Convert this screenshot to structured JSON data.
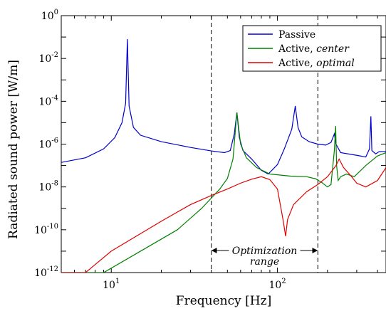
{
  "chart_data": {
    "type": "line",
    "xlabel": "Frequency [Hz]",
    "ylabel": "Radiated sound power [W/m]",
    "xscale": "log",
    "yscale": "log",
    "xlim": [
      5,
      450
    ],
    "ylim": [
      1e-12,
      1
    ],
    "grid": false,
    "legend_position": "top-right",
    "x_ticks": [
      {
        "base": "10",
        "exp": "1",
        "value": 10
      },
      {
        "base": "10",
        "exp": "2",
        "value": 100
      }
    ],
    "y_ticks": [
      {
        "base": "10",
        "exp": "0",
        "value": 1
      },
      {
        "base": "10",
        "exp": "-2",
        "value": 0.01
      },
      {
        "base": "10",
        "exp": "-4",
        "value": 0.0001
      },
      {
        "base": "10",
        "exp": "-6",
        "value": 1e-06
      },
      {
        "base": "10",
        "exp": "-8",
        "value": 1e-08
      },
      {
        "base": "10",
        "exp": "-10",
        "value": 1e-10
      },
      {
        "base": "10",
        "exp": "-12",
        "value": 1e-12
      }
    ],
    "series": [
      {
        "name": "Passive",
        "color": "#0000cc",
        "points": [
          [
            5,
            1.4e-07
          ],
          [
            7,
            2.3e-07
          ],
          [
            9,
            6e-07
          ],
          [
            10.5,
            2e-06
          ],
          [
            11.6,
            1e-05
          ],
          [
            12.2,
            8e-05
          ],
          [
            12.5,
            0.08
          ],
          [
            12.8,
            6e-05
          ],
          [
            13.6,
            6e-06
          ],
          [
            15,
            2.6e-06
          ],
          [
            20,
            1.3e-06
          ],
          [
            30,
            7e-07
          ],
          [
            40,
            4.8e-07
          ],
          [
            48,
            4e-07
          ],
          [
            52,
            5e-07
          ],
          [
            55,
            3e-06
          ],
          [
            57,
            3e-05
          ],
          [
            59,
            2e-06
          ],
          [
            62,
            5e-07
          ],
          [
            70,
            2e-07
          ],
          [
            80,
            6e-08
          ],
          [
            88,
            4e-08
          ],
          [
            100,
            1.1e-07
          ],
          [
            110,
            6e-07
          ],
          [
            122,
            5e-06
          ],
          [
            128,
            6e-05
          ],
          [
            133,
            6e-06
          ],
          [
            140,
            2.2e-06
          ],
          [
            155,
            1.3e-06
          ],
          [
            175,
            1e-06
          ],
          [
            195,
            9e-07
          ],
          [
            210,
            1.2e-06
          ],
          [
            220,
            3e-06
          ],
          [
            225,
            1e-06
          ],
          [
            240,
            4e-07
          ],
          [
            300,
            3e-07
          ],
          [
            340,
            2.5e-07
          ],
          [
            358,
            6e-07
          ],
          [
            365,
            2e-05
          ],
          [
            370,
            5e-07
          ],
          [
            390,
            3.5e-07
          ],
          [
            410,
            4.5e-07
          ],
          [
            450,
            4.5e-07
          ]
        ]
      },
      {
        "name": "Active, center",
        "name_plain": "Active, ",
        "name_italic": "center",
        "color": "#008000",
        "points": [
          [
            5,
            1e-12
          ],
          [
            9,
            1e-12
          ],
          [
            15,
            1e-11
          ],
          [
            25,
            1e-10
          ],
          [
            35,
            1e-09
          ],
          [
            45,
            8e-09
          ],
          [
            50,
            2.5e-08
          ],
          [
            54,
            2e-07
          ],
          [
            57,
            3e-05
          ],
          [
            60,
            1e-06
          ],
          [
            65,
            2.3e-07
          ],
          [
            75,
            8e-08
          ],
          [
            90,
            4e-08
          ],
          [
            120,
            3.2e-08
          ],
          [
            150,
            3e-08
          ],
          [
            170,
            2.4e-08
          ],
          [
            185,
            1.6e-08
          ],
          [
            200,
            1e-08
          ],
          [
            210,
            1.3e-08
          ],
          [
            220,
            5e-07
          ],
          [
            224,
            7e-06
          ],
          [
            227,
            1e-07
          ],
          [
            232,
            2e-08
          ],
          [
            240,
            3e-08
          ],
          [
            260,
            4e-08
          ],
          [
            290,
            3e-08
          ],
          [
            340,
            1e-07
          ],
          [
            400,
            2.8e-07
          ],
          [
            450,
            4e-07
          ]
        ]
      },
      {
        "name": "Active, optimal",
        "name_plain": "Active, ",
        "name_italic": "optimal",
        "color": "#e00000",
        "points": [
          [
            5,
            1e-12
          ],
          [
            7,
            1e-12
          ],
          [
            10,
            1e-11
          ],
          [
            20,
            2.5e-10
          ],
          [
            30,
            1.5e-09
          ],
          [
            40,
            4e-09
          ],
          [
            50,
            8e-09
          ],
          [
            60,
            1.5e-08
          ],
          [
            70,
            2.3e-08
          ],
          [
            80,
            3e-08
          ],
          [
            90,
            2.2e-08
          ],
          [
            100,
            8e-09
          ],
          [
            108,
            3e-10
          ],
          [
            112,
            5e-11
          ],
          [
            115,
            3e-10
          ],
          [
            125,
            1.5e-09
          ],
          [
            150,
            6e-09
          ],
          [
            175,
            1.3e-08
          ],
          [
            200,
            3e-08
          ],
          [
            225,
            1e-07
          ],
          [
            235,
            2e-07
          ],
          [
            250,
            8e-08
          ],
          [
            275,
            3.5e-08
          ],
          [
            300,
            1.5e-08
          ],
          [
            340,
            1e-08
          ],
          [
            400,
            2e-08
          ],
          [
            450,
            8e-08
          ]
        ]
      }
    ],
    "annotations": {
      "optimization_range": {
        "line1": "Optimization",
        "line2": "range",
        "x_start": 40,
        "x_end": 175
      }
    }
  }
}
